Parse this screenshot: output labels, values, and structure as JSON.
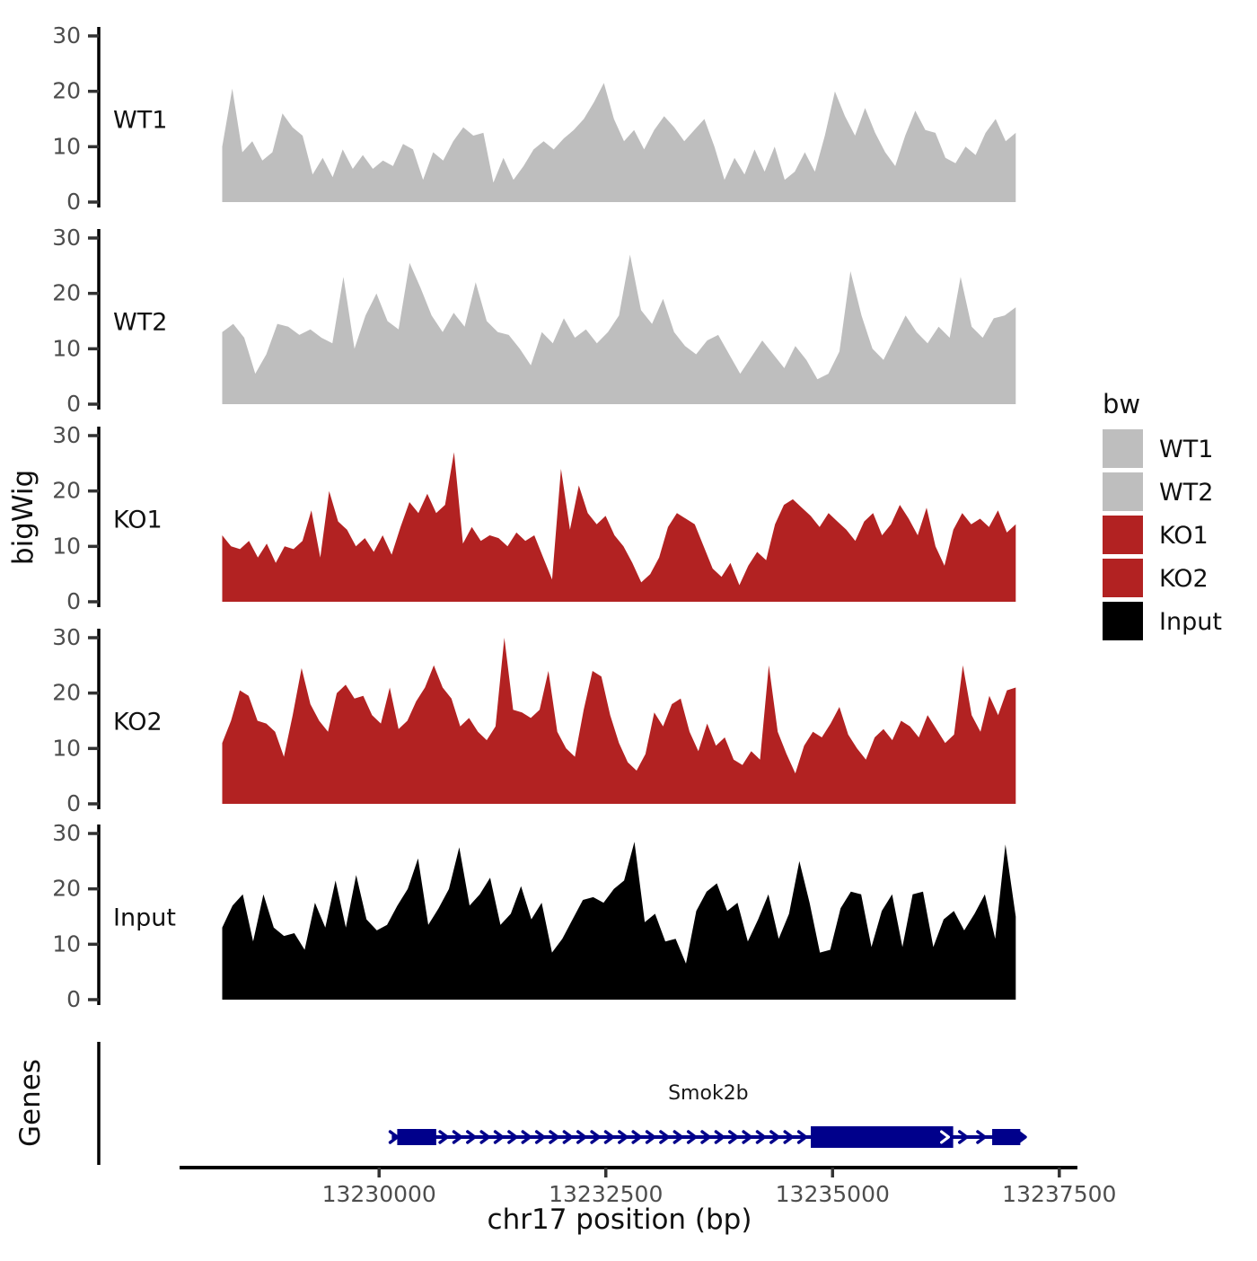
{
  "figure": {
    "kind": "genome coverage multi-track plot",
    "background": "#ffffff"
  },
  "chart_data": {
    "type": "area",
    "title": "",
    "xlabel": "chr17 position (bp)",
    "ylabel": "bigWig",
    "genes_panel_label": "Genes",
    "grid": false,
    "x_axis": {
      "domain": [
        13227800,
        13237700
      ],
      "ticks": [
        13230000,
        13232500,
        13235000,
        13237500
      ],
      "tick_labels": [
        "13230000",
        "13232500",
        "13235000",
        "13237500"
      ]
    },
    "y_axis": {
      "domain": [
        0,
        30
      ],
      "ticks": [
        0,
        10,
        20,
        30
      ],
      "tick_labels": [
        "0",
        "10",
        "20",
        "30"
      ]
    },
    "colors": {
      "gray": "#bebebe",
      "firebrick": "#b22222",
      "black": "#000000",
      "gene_navy": "#00008b",
      "tick_label": "#4d4d4d",
      "axis_line": "#000000",
      "text": "#111111"
    },
    "tracks": [
      {
        "name": "WT1",
        "color": "#bebebe",
        "xstart": 13228270,
        "xend": 13237020,
        "values": [
          10,
          20.5,
          9,
          11,
          7.5,
          9,
          16,
          13.5,
          12,
          5,
          8,
          4.5,
          9.5,
          6,
          8.5,
          6,
          7.5,
          6.5,
          10.5,
          9.5,
          4,
          9,
          7.5,
          11,
          13.5,
          12,
          12.5,
          3.5,
          8,
          4,
          6.5,
          9.5,
          11,
          9.5,
          11.5,
          13,
          15,
          18,
          21.5,
          15,
          11,
          13,
          9.5,
          13,
          15.5,
          13.5,
          11,
          13,
          15,
          10,
          4,
          8,
          5,
          9.5,
          5.5,
          10,
          4,
          5.5,
          9,
          5.5,
          12,
          20,
          15.5,
          12,
          17,
          12.5,
          9,
          6.5,
          12,
          16.5,
          13,
          12.5,
          8,
          7,
          10,
          8.5,
          12.5,
          15,
          11,
          12.5
        ]
      },
      {
        "name": "WT2",
        "color": "#bebebe",
        "xstart": 13228270,
        "xend": 13237020,
        "values": [
          13,
          14.5,
          12,
          5.5,
          9,
          14.5,
          14,
          12.5,
          13.5,
          12,
          11,
          23,
          10,
          16,
          20,
          15,
          13.5,
          25.5,
          21,
          16,
          13,
          16.5,
          14,
          22,
          15,
          13,
          12.5,
          10,
          7,
          13,
          11,
          15.5,
          12,
          13.5,
          11,
          13,
          16,
          27,
          17,
          14.5,
          19,
          13,
          10.5,
          9,
          11.5,
          12.5,
          9,
          5.5,
          8.5,
          11.5,
          9,
          6.5,
          10.5,
          8,
          4.5,
          5.5,
          9.5,
          24,
          16,
          10,
          8,
          12,
          16,
          13,
          11,
          14,
          12,
          23,
          14,
          12,
          15.5,
          16,
          17.5
        ]
      },
      {
        "name": "KO1",
        "color": "#b22222",
        "xstart": 13228270,
        "xend": 13237020,
        "values": [
          12,
          10,
          9.5,
          11,
          8,
          10.5,
          7,
          10,
          9.5,
          11,
          16.5,
          8,
          20,
          14.5,
          13,
          10,
          11.5,
          9,
          12,
          8.5,
          13.5,
          18,
          16,
          19.5,
          16,
          17.5,
          27,
          10.5,
          13.5,
          11,
          12,
          11.5,
          10,
          12.5,
          11,
          12,
          8,
          4,
          24,
          13,
          21,
          16,
          14,
          15.5,
          12,
          10,
          7,
          3.5,
          5,
          8,
          13.5,
          16,
          15,
          14,
          10,
          6,
          4.5,
          7,
          3,
          6.5,
          9,
          7.5,
          14,
          17.5,
          18.5,
          17,
          15.5,
          13.5,
          16,
          14.5,
          13,
          11,
          14.5,
          16,
          12,
          14,
          17.5,
          15,
          12,
          17,
          10,
          6.5,
          13,
          16,
          14,
          15,
          13.5,
          16.5,
          12.5,
          14
        ]
      },
      {
        "name": "KO2",
        "color": "#b22222",
        "xstart": 13228270,
        "xend": 13237020,
        "values": [
          11,
          15,
          20.5,
          19.5,
          15,
          14.5,
          13,
          8.5,
          16,
          24.5,
          18,
          15,
          13,
          20,
          21.5,
          19,
          19.5,
          16,
          14.5,
          21,
          13.5,
          15,
          18.5,
          21,
          25,
          21,
          19,
          14,
          15.5,
          13,
          11.5,
          14,
          30,
          17,
          16.5,
          15.5,
          17,
          24,
          13,
          10,
          8.5,
          17,
          24,
          23,
          16,
          11,
          7.5,
          6,
          9,
          16.5,
          14,
          18,
          19,
          13,
          9.5,
          14.5,
          10.5,
          12,
          8,
          7,
          9.5,
          8,
          25,
          13,
          9,
          5.5,
          10.5,
          13,
          12,
          14.5,
          17.5,
          12.5,
          10,
          8,
          12,
          13.5,
          11.5,
          15,
          14,
          12,
          16,
          13.5,
          11,
          12.5,
          25,
          16,
          13,
          19.5,
          16,
          20.5,
          21
        ]
      },
      {
        "name": "Input",
        "color": "#000000",
        "xstart": 13228270,
        "xend": 13237020,
        "values": [
          13,
          17,
          19,
          10.5,
          19,
          13,
          11.5,
          12,
          9,
          17.5,
          13,
          21.5,
          13,
          22.5,
          14.5,
          12.5,
          13.5,
          17,
          20,
          25.5,
          13.5,
          16.5,
          20,
          27.5,
          17,
          19,
          22,
          13.5,
          15.5,
          20.5,
          14.5,
          17.5,
          8.5,
          11,
          14.5,
          18,
          18.5,
          17.5,
          20,
          21.5,
          28.5,
          14,
          15.5,
          10.5,
          11,
          6.5,
          16,
          19.5,
          21,
          16,
          17.5,
          10.5,
          14.5,
          19,
          11,
          15.5,
          25,
          17.5,
          8.5,
          9,
          16.5,
          19.5,
          19,
          9.5,
          16,
          19,
          9.5,
          19,
          19.5,
          9.5,
          14.5,
          16,
          12.5,
          15.5,
          19,
          11,
          28,
          15
        ]
      }
    ],
    "legend": {
      "title": "bw",
      "entries": [
        {
          "label": "WT1",
          "color": "#bebebe"
        },
        {
          "label": "WT2",
          "color": "#bebebe"
        },
        {
          "label": "KO1",
          "color": "#b22222"
        },
        {
          "label": "KO2",
          "color": "#b22222"
        },
        {
          "label": "Input",
          "color": "#000000"
        }
      ]
    },
    "gene_track": {
      "gene_name": "Smok2b",
      "color": "#00008b",
      "strand": "+",
      "start": 13230140,
      "end": 13237120,
      "exons": [
        {
          "start": 13230200,
          "end": 13230630,
          "height": 18
        },
        {
          "start": 13234760,
          "end": 13236330,
          "height": 24
        },
        {
          "start": 13236760,
          "end": 13237070,
          "height": 18
        }
      ]
    }
  }
}
